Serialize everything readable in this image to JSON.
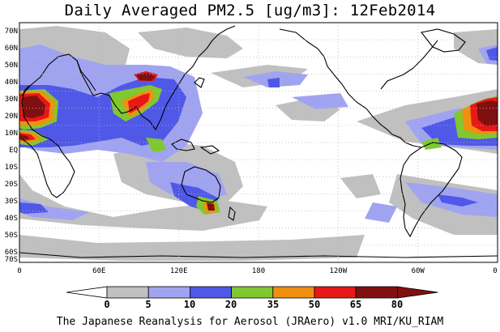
{
  "title": "Daily Averaged PM2.5 [ug/m3]: 12Feb2014",
  "credit": "The Japanese Reanalysis for Aerosol (JRAero) v1.0 MRI/KU_RIAM",
  "lat_labels": [
    "70N",
    "60N",
    "50N",
    "40N",
    "30N",
    "20N",
    "10N",
    "EQ",
    "10S",
    "20S",
    "30S",
    "40S",
    "50S",
    "60S",
    "70S"
  ],
  "lon_labels": [
    "0",
    "60E",
    "120E",
    "180",
    "120W",
    "60W",
    "0"
  ],
  "colorbar": {
    "labels": [
      "0",
      "5",
      "10",
      "20",
      "35",
      "50",
      "65",
      "80"
    ],
    "colors": [
      "#ffffff",
      "#c0c0c0",
      "#a0a4f0",
      "#5058e8",
      "#80c830",
      "#f09010",
      "#e81818",
      "#801010"
    ]
  }
}
